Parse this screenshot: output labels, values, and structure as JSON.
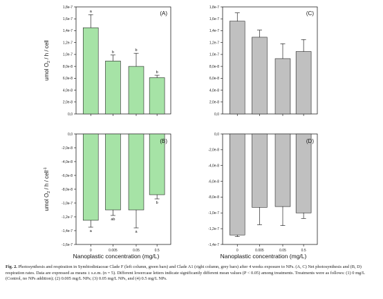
{
  "chart_data": [
    {
      "panel": "(A)",
      "type": "bar",
      "bar_color": "#a6e3a6",
      "ylabel": "umol O2 / h / cell",
      "ylim": [
        0,
        1.8e-07
      ],
      "yticks": [
        "0,0",
        "2,0e-8",
        "4,0e-8",
        "6,0e-8",
        "8,0e-8",
        "1,0e-7",
        "1,2e-7",
        "1,4e-7",
        "1,6e-7",
        "1,8e-7"
      ],
      "categories": [
        "0",
        "0.005",
        "0.05",
        "0.5"
      ],
      "values": [
        1.45e-07,
        8.9e-08,
        8e-08,
        6.1e-08
      ],
      "errors": [
        2.2e-08,
        1e-08,
        2.2e-08,
        4e-09
      ],
      "letters": [
        "a",
        "b",
        "b",
        "b"
      ]
    },
    {
      "panel": "(B)",
      "type": "bar",
      "bar_color": "#a6e3a6",
      "ylabel": "umol O2 / h / cell-1",
      "ylim": [
        -1.6e-07,
        0
      ],
      "yticks": [
        "0,0",
        "-2,0e-8",
        "-4,0e-8",
        "-6,0e-8",
        "-8,0e-8",
        "-1,0e-7",
        "-1,2e-7",
        "-1,4e-7",
        "-1,6e-7"
      ],
      "categories": [
        "0",
        "0.005",
        "0.05",
        "0.5"
      ],
      "values": [
        -1.25e-07,
        -1.1e-07,
        -1.1e-07,
        -8.8e-08
      ],
      "errors": [
        1e-08,
        8e-09,
        2.6e-08,
        6e-09
      ],
      "letters": [
        "a",
        "ab",
        "a",
        "b"
      ]
    },
    {
      "panel": "(C)",
      "type": "bar",
      "bar_color": "#c0c0c0",
      "ylim": [
        0,
        1.8e-07
      ],
      "yticks": [
        "0,0",
        "2,0e-8",
        "4,0e-8",
        "6,0e-8",
        "8,0e-8",
        "1,0e-7",
        "1,2e-7",
        "1,4e-7",
        "1,6e-7",
        "1,8e-7"
      ],
      "categories": [
        "0",
        "0.005",
        "0.05",
        "0.5"
      ],
      "values": [
        1.56e-07,
        1.29e-07,
        9.3e-08,
        1.05e-07
      ],
      "errors": [
        1.4e-08,
        1.2e-08,
        2.5e-08,
        2e-08
      ]
    },
    {
      "panel": "(D)",
      "type": "bar",
      "bar_color": "#c0c0c0",
      "ylim": [
        -1.4e-07,
        0
      ],
      "yticks": [
        "0,0",
        "-2,0e-8",
        "-4,0e-8",
        "-6,0e-8",
        "-8,0e-8",
        "-1,0e-7",
        "-1,2e-7",
        "-1,4e-7"
      ],
      "categories": [
        "0",
        "0.005",
        "0.05",
        "0.5"
      ],
      "values": [
        -1.28e-07,
        -9.3e-08,
        -9.2e-08,
        -1e-07
      ],
      "errors": [
        2e-09,
        2.2e-08,
        2.4e-08,
        7e-09
      ]
    }
  ],
  "xlabel": "Nanoplastic concentration (mg/L)",
  "caption": {
    "fig_label": "Fig. 2.",
    "text": "Photosynthesis and respiration in Symbiodiniaceae Clade F (left column, green bars) and Clade A1 (right column, grey bars) after 4 weeks exposure to NPs. (A, C) Net photosynthesis and (B, D) respiration rates. Data are expressed as means ± s.e.m. (n = 5). Different lowercase letters indicate significantly different mean values (P < 0.05) among treatments. Treatments were as follows: (1) 0 mg/L (Control, no NPs addition); (2) 0.005 mg/L NPs; (3) 0.05 mg/L NPs, and (4) 0.5 mg/L NPs."
  }
}
